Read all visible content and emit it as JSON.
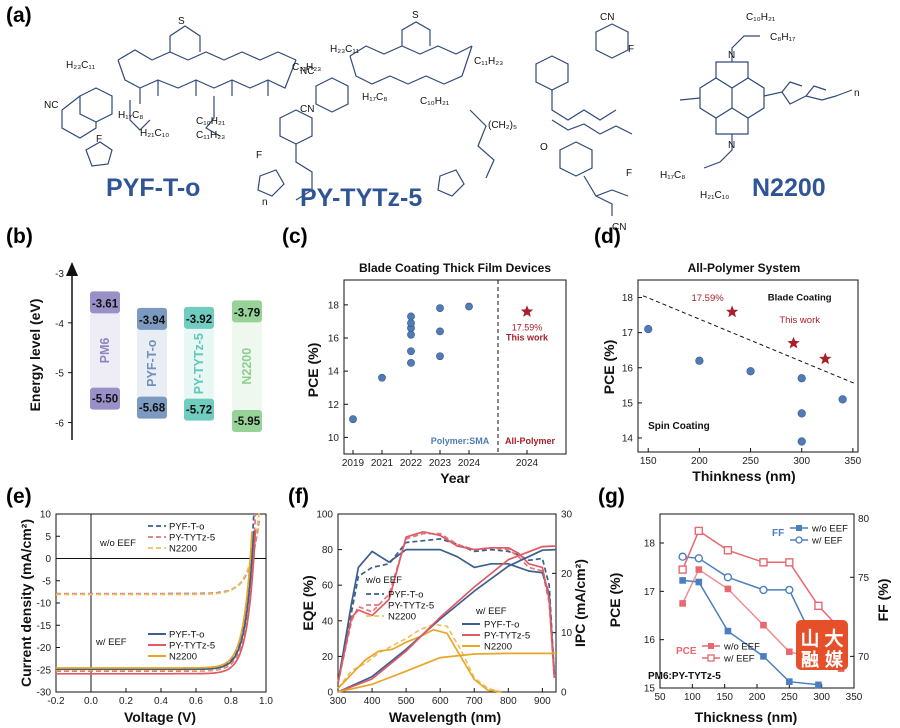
{
  "panel_labels": [
    "(a)",
    "(b)",
    "(c)",
    "(d)",
    "(e)",
    "(f)",
    "(g)"
  ],
  "molecules": {
    "names": [
      "PYF-T-o",
      "PY-TYTz-5",
      "N2200"
    ],
    "atom_labels": [
      "NC",
      "CN",
      "F",
      "S",
      "N",
      "O",
      "n",
      "C₁₁H₂₃",
      "C₁₀H₂₁",
      "C₈H₁₇",
      "H₁₇C₈",
      "H₂₁C₁₀",
      "H₂₃C₁₁",
      "(CH₂)₅"
    ]
  },
  "chart_data": [
    {
      "panel": "b",
      "type": "bar",
      "title": "",
      "ylabel": "Energy level (eV)",
      "yticks": [
        -3,
        -4,
        -5,
        -6
      ],
      "ylim": [
        -6.35,
        -2.7
      ],
      "categories": [
        "PM6",
        "PYF-T-o",
        "PY-TYTz-5",
        "N2200"
      ],
      "lumo": [
        -3.61,
        -3.94,
        -3.92,
        -3.79
      ],
      "homo": [
        -5.5,
        -5.68,
        -5.72,
        -5.95
      ],
      "lumo_labels": [
        "-3.61",
        "-3.94",
        "-3.92",
        "-3.79"
      ],
      "homo_labels": [
        "-5.50",
        "-5.68",
        "-5.72",
        "-5.95"
      ],
      "colors": [
        "#8e84c2",
        "#6e8fb8",
        "#5fc7b8",
        "#8cce8e"
      ]
    },
    {
      "panel": "c",
      "type": "scatter",
      "title": "Blade Coating Thick Film Devices",
      "xlabel": "Year",
      "ylabel": "PCE (%)",
      "ylim": [
        9,
        19.5
      ],
      "yticks": [
        10,
        12,
        14,
        16,
        18
      ],
      "xcategories": [
        "2019",
        "2021",
        "2022",
        "2023",
        "2024",
        "2024"
      ],
      "series": [
        {
          "name": "Polymer:SMA",
          "points": [
            [
              "2019",
              11.1
            ],
            [
              "2021",
              13.6
            ],
            [
              "2022",
              14.5
            ],
            [
              "2022",
              15.2
            ],
            [
              "2022",
              16.2
            ],
            [
              "2022",
              16.6
            ],
            [
              "2022",
              16.9
            ],
            [
              "2022",
              17.3
            ],
            [
              "2023",
              14.9
            ],
            [
              "2023",
              16.4
            ],
            [
              "2023",
              17.8
            ],
            [
              "2024",
              17.9
            ]
          ]
        },
        {
          "name": "All-Polymer",
          "points": [
            [
              "2024b",
              17.59
            ]
          ]
        }
      ],
      "annotations": [
        "17.59%",
        "This work"
      ]
    },
    {
      "panel": "d",
      "type": "scatter",
      "title": "All-Polymer System",
      "xlabel": "Thinkness (nm)",
      "ylabel": "PCE (%)",
      "xlim": [
        140,
        355
      ],
      "xticks": [
        150,
        200,
        250,
        300,
        350
      ],
      "ylim": [
        13.6,
        18.5
      ],
      "yticks": [
        14,
        15,
        16,
        17,
        18
      ],
      "series": [
        {
          "name": "Spin Coating",
          "points": [
            [
              150,
              17.1
            ],
            [
              200,
              16.2
            ],
            [
              250,
              15.9
            ],
            [
              300,
              15.7
            ],
            [
              300,
              14.7
            ],
            [
              300,
              13.9
            ],
            [
              340,
              15.1
            ]
          ]
        },
        {
          "name": "Blade Coating",
          "points": [
            [
              232,
              17.59
            ],
            [
              292,
              16.7
            ],
            [
              323,
              16.25
            ]
          ]
        }
      ],
      "trendline": [
        [
          145,
          18.05
        ],
        [
          352,
          15.55
        ]
      ],
      "annotations": [
        "17.59%",
        "This work"
      ]
    },
    {
      "panel": "e",
      "type": "line",
      "title": "",
      "xlabel": "Voltage (V)",
      "ylabel": "Current density (mA/cm²)",
      "xlim": [
        -0.2,
        1.0
      ],
      "xticks": [
        -0.2,
        0.0,
        0.2,
        0.4,
        0.6,
        0.8,
        1.0
      ],
      "ylim": [
        -30,
        10
      ],
      "yticks": [
        -30,
        -25,
        -20,
        -15,
        -10,
        -5,
        0,
        5,
        10
      ],
      "legend_groups": [
        "w/o EEF",
        "w/ EEF"
      ],
      "series": [
        {
          "name": "PYF-T-o",
          "group": "w/o EEF",
          "style": "dashed",
          "color": "#3b5f8e",
          "jsc": -7.9,
          "voc": 0.92,
          "n": 0.055
        },
        {
          "name": "PY-TYTz-5",
          "group": "w/o EEF",
          "style": "dashed",
          "color": "#e0787e",
          "jsc": -7.95,
          "voc": 0.92,
          "n": 0.055
        },
        {
          "name": "N2200",
          "group": "w/o EEF",
          "style": "dashed",
          "color": "#f0c060",
          "jsc": -8.1,
          "voc": 0.915,
          "n": 0.055
        },
        {
          "name": "PYF-T-o",
          "group": "w/ EEF",
          "style": "dashed",
          "color": "#3b5f8e",
          "jsc": -24.8,
          "voc": 0.915,
          "n": 0.045
        },
        {
          "name": "PY-TYTz-5",
          "group": "w/ EEF",
          "style": "dashed",
          "color": "#e0787e",
          "jsc": -25.3,
          "voc": 0.925,
          "n": 0.045
        },
        {
          "name": "N2200",
          "group": "w/ EEF",
          "style": "dashed",
          "color": "#f0c060",
          "jsc": -25.1,
          "voc": 0.92,
          "n": 0.045
        },
        {
          "name": "PYF-T-o",
          "group": "w/ EEF solid",
          "style": "solid",
          "color": "#3b5f8e",
          "jsc": -24.9,
          "voc": 0.92,
          "n": 0.045
        },
        {
          "name": "PY-TYTz-5",
          "group": "w/ EEF solid",
          "style": "solid",
          "color": "#e05a63",
          "jsc": -25.9,
          "voc": 0.93,
          "n": 0.045
        },
        {
          "name": "N2200",
          "group": "w/ EEF solid",
          "style": "solid",
          "color": "#e8a628",
          "jsc": -24.6,
          "voc": 0.91,
          "n": 0.045
        }
      ]
    },
    {
      "panel": "f",
      "type": "line",
      "title": "",
      "xlabel": "Wavelength (nm)",
      "ylabel": "EQE (%)",
      "ylabel_right": "IPC (mA/cm²)",
      "xlim": [
        300,
        940
      ],
      "xticks": [
        300,
        400,
        500,
        600,
        700,
        800,
        900
      ],
      "ylim": [
        0,
        100
      ],
      "yticks": [
        0,
        20,
        40,
        60,
        80,
        100
      ],
      "ylim_right": [
        0,
        30
      ],
      "yticks_right": [
        0,
        10,
        20,
        30
      ],
      "legend_groups": [
        "w/o EEF",
        "w/ EEF"
      ],
      "series": [
        {
          "name": "PYF-T-o",
          "group": "w/o EEF",
          "style": "dashed",
          "color": "#3b5f8e",
          "axis": "left",
          "x": [
            300,
            340,
            360,
            400,
            450,
            500,
            550,
            600,
            650,
            700,
            750,
            800,
            830,
            860,
            900,
            920,
            935
          ],
          "y": [
            5,
            45,
            65,
            70,
            72,
            84,
            85,
            86,
            83,
            79,
            80,
            79,
            77,
            74,
            75,
            60,
            10
          ]
        },
        {
          "name": "PY-TYTz-5",
          "group": "w/o EEF",
          "style": "dashed",
          "color": "#e0787e",
          "axis": "left",
          "x": [
            300,
            340,
            360,
            400,
            450,
            500,
            550,
            600,
            650,
            700,
            750,
            800,
            830,
            860,
            900,
            920,
            935
          ],
          "y": [
            5,
            40,
            48,
            45,
            55,
            86,
            89,
            89,
            83,
            80,
            81,
            80,
            76,
            70,
            68,
            50,
            8
          ]
        },
        {
          "name": "N2200",
          "group": "w/o EEF",
          "style": "dashed",
          "color": "#f0c060",
          "axis": "left",
          "x": [
            300,
            340,
            380,
            420,
            460,
            500,
            540,
            580,
            620,
            660,
            700,
            740,
            780
          ],
          "y": [
            2,
            12,
            16,
            22,
            26,
            30,
            35,
            38,
            37,
            24,
            8,
            2,
            0
          ]
        },
        {
          "name": "PYF-T-o",
          "group": "w/ EEF",
          "style": "solid",
          "color": "#3b5f8e",
          "axis": "left",
          "x": [
            300,
            340,
            360,
            400,
            450,
            500,
            550,
            600,
            650,
            700,
            750,
            800,
            830,
            860,
            900,
            920,
            935
          ],
          "y": [
            5,
            50,
            70,
            79,
            73,
            80,
            80,
            80,
            76,
            70,
            72,
            72,
            70,
            68,
            67,
            55,
            10
          ]
        },
        {
          "name": "PY-TYTz-5",
          "group": "w/ EEF",
          "style": "solid",
          "color": "#e05a63",
          "axis": "left",
          "x": [
            300,
            340,
            360,
            400,
            450,
            500,
            550,
            600,
            650,
            700,
            750,
            800,
            830,
            860,
            900,
            920,
            935
          ],
          "y": [
            5,
            42,
            46,
            43,
            52,
            87,
            90,
            88,
            82,
            80,
            81,
            81,
            78,
            72,
            70,
            52,
            8
          ]
        },
        {
          "name": "N2200",
          "group": "w/ EEF",
          "style": "solid",
          "color": "#e8a628",
          "axis": "left",
          "x": [
            300,
            340,
            380,
            420,
            460,
            500,
            540,
            580,
            620,
            660,
            700,
            740,
            780
          ],
          "y": [
            2,
            10,
            18,
            23,
            24,
            28,
            31,
            35,
            33,
            20,
            7,
            1,
            0
          ]
        },
        {
          "name": "PYF-T-o IPC",
          "style": "solid",
          "color": "#3b5f8e",
          "axis": "right",
          "x": [
            300,
            400,
            500,
            600,
            700,
            800,
            900,
            940
          ],
          "y": [
            0,
            2.6,
            7.2,
            12.3,
            17.0,
            21.2,
            23.9,
            24.0
          ]
        },
        {
          "name": "PY-TYTz-5 IPC",
          "style": "solid",
          "color": "#e05a63",
          "axis": "right",
          "x": [
            300,
            400,
            500,
            600,
            700,
            800,
            900,
            940
          ],
          "y": [
            0,
            2.2,
            6.9,
            12.6,
            17.7,
            22.3,
            24.5,
            24.6
          ]
        },
        {
          "name": "N2200 IPC",
          "style": "solid",
          "color": "#e8a628",
          "axis": "right",
          "x": [
            300,
            400,
            500,
            600,
            700,
            800,
            900,
            940
          ],
          "y": [
            0,
            1.3,
            3.5,
            5.8,
            6.4,
            6.5,
            6.5,
            6.5
          ]
        }
      ]
    },
    {
      "panel": "g",
      "type": "line",
      "title": "",
      "subtitle": "PM6:PY-TYTz-5",
      "xlabel": "Thickness (nm)",
      "ylabel": "PCE (%)",
      "ylabel_right": "FF (%)",
      "xlim": [
        50,
        350
      ],
      "xticks": [
        50,
        100,
        150,
        200,
        250,
        300,
        350
      ],
      "ylim": [
        15,
        18.6
      ],
      "yticks": [
        15,
        16,
        17,
        18
      ],
      "ylim_right": [
        68,
        79
      ],
      "yticks_right": [
        70,
        75
      ],
      "legend_groups": [
        "FF",
        "PCE"
      ],
      "series": [
        {
          "name": "w/o EEF",
          "group": "FF",
          "axis": "right",
          "marker": "square",
          "color": "#4a7fc0",
          "x": [
            85,
            110,
            155,
            210,
            250,
            295
          ],
          "y": [
            74.8,
            74.7,
            71.6,
            70.0,
            68.4,
            68.2
          ]
        },
        {
          "name": "w/ EEF",
          "group": "FF",
          "axis": "right",
          "marker": "circle",
          "color": "#4a7fc0",
          "x": [
            85,
            110,
            155,
            210,
            250,
            295
          ],
          "y": [
            76.3,
            76.2,
            75.0,
            74.2,
            74.2,
            70.4
          ]
        },
        {
          "name": "w/o EEF",
          "group": "PCE",
          "axis": "left",
          "marker": "square",
          "color": "#e8686f",
          "x": [
            85,
            110,
            155,
            210,
            250,
            295,
            330
          ],
          "y": [
            16.75,
            17.45,
            17.05,
            16.3,
            15.75,
            15.6,
            15.4
          ]
        },
        {
          "name": "w/ EEF",
          "group": "PCE",
          "axis": "left",
          "marker": "square-open",
          "color": "#e8686f",
          "x": [
            85,
            110,
            155,
            210,
            250,
            295,
            330
          ],
          "y": [
            17.45,
            18.25,
            17.85,
            17.6,
            17.6,
            16.7,
            16.2
          ]
        }
      ]
    }
  ],
  "watermark": {
    "chars": [
      "山",
      "大",
      "融",
      "媒"
    ],
    "color": "#e5502b"
  }
}
